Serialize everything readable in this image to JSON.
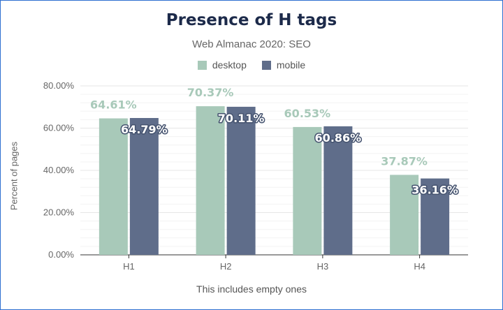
{
  "chart_data": {
    "type": "bar",
    "title": "Presence of H tags",
    "subtitle": "Web Almanac 2020: SEO",
    "xlabel": "This includes empty ones",
    "ylabel": "Percent of pages",
    "categories": [
      "H1",
      "H2",
      "H3",
      "H4"
    ],
    "series": [
      {
        "name": "desktop",
        "color": "#a8c9b9",
        "values": [
          64.61,
          70.37,
          60.53,
          37.87
        ],
        "labels": [
          "64.61%",
          "70.37%",
          "60.53%",
          "37.87%"
        ]
      },
      {
        "name": "mobile",
        "color": "#5f6d8a",
        "values": [
          64.79,
          70.11,
          60.86,
          36.16
        ],
        "labels": [
          "64.79%",
          "70.11%",
          "60.86%",
          "36.16%"
        ]
      }
    ],
    "ylim": [
      0,
      80
    ],
    "yticks": [
      0,
      20,
      40,
      60,
      80
    ],
    "ytick_labels": [
      "0.00%",
      "20.00%",
      "40.00%",
      "60.00%",
      "80.00%"
    ],
    "grid": true,
    "legend_position": "top-center"
  }
}
